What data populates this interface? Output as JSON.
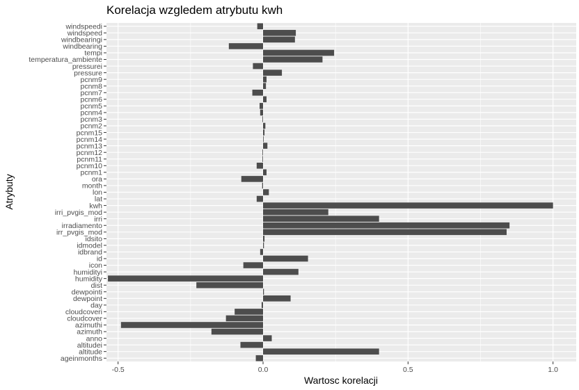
{
  "chart_data": {
    "type": "bar",
    "orientation": "horizontal",
    "title": "Korelacja wzgledem atrybutu kwh",
    "xlabel": "Wartosc korelacji",
    "ylabel": "Atrybuty",
    "xlim": [
      -0.54,
      1.08
    ],
    "xticks": [
      -0.5,
      0.0,
      0.5,
      1.0
    ],
    "xtick_labels": [
      "-0.5",
      "0.0",
      "0.5",
      "1.0"
    ],
    "grid": true,
    "colors": {
      "panel": "#ebebeb",
      "grid": "#ffffff",
      "bar": "#4d4d4d"
    },
    "categories": [
      "windspeedi",
      "windspeed",
      "windbearingi",
      "windbearing",
      "tempi",
      "temperatura_ambiente",
      "pressurei",
      "pressure",
      "pcnm9",
      "pcnm8",
      "pcnm7",
      "pcnm6",
      "pcnm5",
      "pcnm4",
      "pcnm3",
      "pcnm2",
      "pcnm15",
      "pcnm14",
      "pcnm13",
      "pcnm12",
      "pcnm11",
      "pcnm10",
      "pcnm1",
      "ora",
      "month",
      "lon",
      "lat",
      "kwh",
      "irri_pvgis_mod",
      "irri",
      "irradiamento",
      "irr_pvgis_mod",
      "idsito",
      "idmodel",
      "idbrand",
      "id",
      "icon",
      "humidityi",
      "humidity",
      "dist",
      "dewpointi",
      "dewpoint",
      "day",
      "cloudcoveri",
      "cloudcover",
      "azimuthi",
      "azimuth",
      "anno",
      "altitudei",
      "altitude",
      "ageinmonths"
    ],
    "values": [
      -0.02,
      0.113,
      0.11,
      -0.118,
      0.245,
      0.205,
      -0.035,
      0.065,
      0.012,
      0.01,
      -0.037,
      0.012,
      -0.012,
      -0.01,
      -0.002,
      0.008,
      0.005,
      0.002,
      0.015,
      -0.002,
      -0.002,
      -0.022,
      0.012,
      -0.075,
      -0.003,
      0.02,
      -0.022,
      1.0,
      0.225,
      0.4,
      0.85,
      0.84,
      0.005,
      0.003,
      -0.01,
      0.155,
      -0.068,
      0.122,
      -0.535,
      -0.23,
      0.003,
      0.095,
      -0.005,
      -0.098,
      -0.128,
      -0.49,
      -0.178,
      0.03,
      -0.078,
      0.4,
      -0.025
    ]
  }
}
